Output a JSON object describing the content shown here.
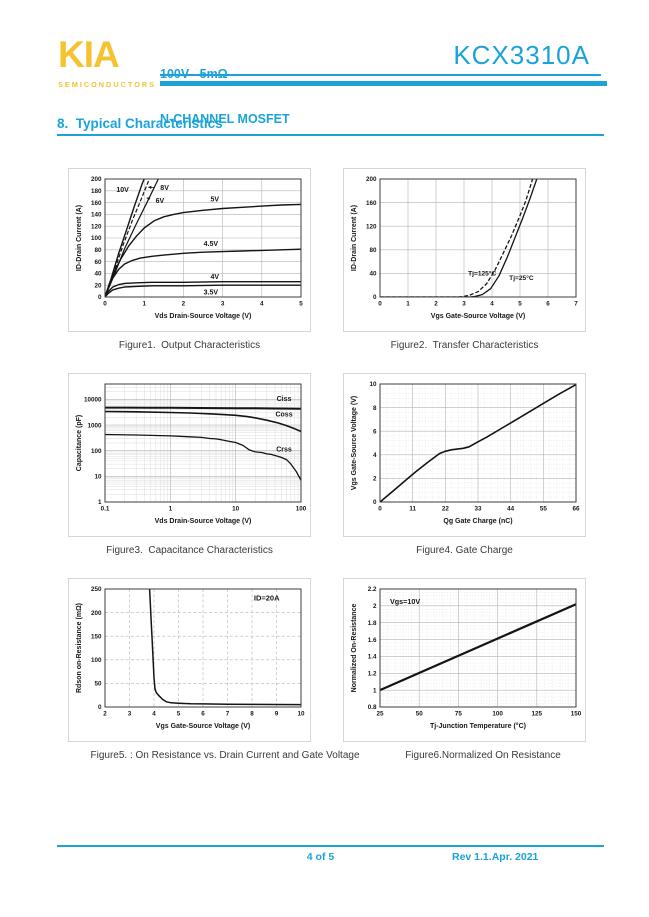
{
  "page": {
    "header": {
      "logo_text": "KIA",
      "logo_sub": "SEMICONDUCTORS",
      "subtitle_line1": "100V   5mΩ",
      "subtitle_line2": "N-CHANNEL MOSFET",
      "part_number": "KCX3310A"
    },
    "section_title": "8.  Typical Characteristics",
    "footer": {
      "page_info": "4 of 5",
      "revision": "Rev 1.1.Apr. 2021"
    },
    "colors": {
      "accent_cyan": "#1ba3d8",
      "logo_yellow": "#f5c230",
      "chart_line": "#141414",
      "grid_gray": "#b5b5b5"
    }
  },
  "chart_data": [
    {
      "type": "line",
      "title": "Figure1.  Output Characteristics",
      "xlabel": "Vds Drain-Source Voltage (V)",
      "ylabel": "ID-Drain Current (A)",
      "xscale": "linear",
      "yscale": "linear",
      "xlim": [
        0,
        5
      ],
      "ylim": [
        0,
        200
      ],
      "xticks": [
        0,
        1,
        2,
        3,
        4,
        5
      ],
      "yticks": [
        0,
        20,
        40,
        60,
        80,
        100,
        120,
        140,
        160,
        180,
        200
      ],
      "grid": "solid",
      "series": [
        {
          "name": "Vgs=10V",
          "width": 1.4,
          "points": [
            [
              0,
              0
            ],
            [
              0.15,
              30
            ],
            [
              0.35,
              74
            ],
            [
              0.55,
              114
            ],
            [
              0.75,
              154
            ],
            [
              0.95,
              192
            ],
            [
              1.0,
              200
            ]
          ]
        },
        {
          "name": "Vgs=8V",
          "dash": "4,2",
          "width": 1.2,
          "points": [
            [
              0,
              0
            ],
            [
              0.2,
              36
            ],
            [
              0.45,
              86
            ],
            [
              0.7,
              130
            ],
            [
              0.95,
              170
            ],
            [
              1.13,
              200
            ]
          ]
        },
        {
          "name": "Vgs=6V",
          "width": 1.2,
          "points": [
            [
              0,
              0
            ],
            [
              0.25,
              40
            ],
            [
              0.5,
              82
            ],
            [
              0.8,
              124
            ],
            [
              1.1,
              164
            ],
            [
              1.36,
              200
            ]
          ]
        },
        {
          "name": "Vgs=5V",
          "width": 1.4,
          "points": [
            [
              0,
              0
            ],
            [
              0.1,
              20
            ],
            [
              0.25,
              44
            ],
            [
              0.4,
              64
            ],
            [
              0.6,
              86
            ],
            [
              0.8,
              103
            ],
            [
              1.0,
              117
            ],
            [
              1.25,
              129
            ],
            [
              1.5,
              136
            ],
            [
              1.75,
              140
            ],
            [
              2.0,
              143
            ],
            [
              2.5,
              147
            ],
            [
              3.0,
              150
            ],
            [
              3.5,
              152
            ],
            [
              4.0,
              154
            ],
            [
              4.5,
              156
            ],
            [
              5.0,
              157
            ]
          ]
        },
        {
          "name": "Vgs=4.5V",
          "width": 1.4,
          "points": [
            [
              0,
              0
            ],
            [
              0.08,
              14
            ],
            [
              0.2,
              32
            ],
            [
              0.35,
              47
            ],
            [
              0.5,
              56
            ],
            [
              0.7,
              62
            ],
            [
              0.9,
              66
            ],
            [
              1.2,
              69
            ],
            [
              1.5,
              71
            ],
            [
              2.0,
              74
            ],
            [
              2.5,
              76
            ],
            [
              3.0,
              77
            ],
            [
              3.5,
              78
            ],
            [
              4.0,
              79
            ],
            [
              4.5,
              80
            ],
            [
              5.0,
              81
            ]
          ]
        },
        {
          "name": "Vgs=4V",
          "width": 1.4,
          "points": [
            [
              0,
              0
            ],
            [
              0.08,
              9
            ],
            [
              0.2,
              17
            ],
            [
              0.35,
              21
            ],
            [
              0.5,
              23
            ],
            [
              0.8,
              24
            ],
            [
              1.2,
              25
            ],
            [
              2.0,
              25
            ],
            [
              3.0,
              26
            ],
            [
              4.0,
              26
            ],
            [
              5.0,
              26
            ]
          ]
        },
        {
          "name": "Vgs=3.5V",
          "width": 1.4,
          "points": [
            [
              0,
              0
            ],
            [
              0.08,
              6
            ],
            [
              0.2,
              12
            ],
            [
              0.35,
              15
            ],
            [
              0.5,
              17
            ],
            [
              0.8,
              18
            ],
            [
              1.2,
              19
            ],
            [
              2.0,
              19
            ],
            [
              3.0,
              20
            ],
            [
              4.0,
              20
            ],
            [
              5.0,
              20
            ]
          ]
        }
      ],
      "annotations": [
        {
          "text": "10V",
          "x": 0.45,
          "y": 182
        },
        {
          "text": "8V",
          "x": 1.52,
          "y": 185,
          "arrow": [
            1.1,
            186
          ]
        },
        {
          "text": "6V",
          "x": 1.4,
          "y": 163,
          "arrow": [
            1.06,
            168
          ]
        },
        {
          "text": "5V",
          "x": 2.8,
          "y": 166
        },
        {
          "text": "4.5V",
          "x": 2.7,
          "y": 90
        },
        {
          "text": "4V",
          "x": 2.8,
          "y": 34
        },
        {
          "text": "3.5V",
          "x": 2.7,
          "y": 8
        }
      ]
    },
    {
      "type": "line",
      "title": "Figure2.  Transfer Characteristics",
      "xlabel": "Vgs Gate-Source Voltage (V)",
      "ylabel": "ID-Drain Current (A)",
      "xscale": "linear",
      "yscale": "linear",
      "xlim": [
        0,
        7
      ],
      "ylim": [
        0,
        200
      ],
      "xticks": [
        0,
        1,
        2,
        3,
        4,
        5,
        6,
        7
      ],
      "yticks": [
        0,
        40,
        80,
        120,
        160,
        200
      ],
      "grid": "solid",
      "series": [
        {
          "name": "Tj=125°C",
          "dash": "4,2",
          "width": 1.3,
          "points": [
            [
              0,
              0
            ],
            [
              2.8,
              0
            ],
            [
              3.0,
              1
            ],
            [
              3.2,
              3
            ],
            [
              3.5,
              9
            ],
            [
              3.8,
              22
            ],
            [
              4.1,
              45
            ],
            [
              4.4,
              74
            ],
            [
              4.7,
              104
            ],
            [
              5.0,
              138
            ],
            [
              5.2,
              162
            ],
            [
              5.45,
              200
            ]
          ]
        },
        {
          "name": "Tj=25°C",
          "width": 1.3,
          "points": [
            [
              0,
              0
            ],
            [
              3.2,
              0
            ],
            [
              3.4,
              1
            ],
            [
              3.65,
              4
            ],
            [
              3.95,
              14
            ],
            [
              4.25,
              36
            ],
            [
              4.55,
              68
            ],
            [
              4.85,
              104
            ],
            [
              5.1,
              134
            ],
            [
              5.35,
              166
            ],
            [
              5.6,
              200
            ]
          ]
        }
      ],
      "annotations": [
        {
          "text": "Tj=125°C",
          "x": 3.65,
          "y": 40,
          "size": 6.6
        },
        {
          "text": "Tj=25°C",
          "x": 5.05,
          "y": 33,
          "size": 6.6
        }
      ]
    },
    {
      "type": "line",
      "title": "Figure3.  Capacitance Characteristics",
      "xlabel": "Vds Drain-Source Voltage (V)",
      "ylabel": "Capacitance (pF)",
      "xscale": "log",
      "yscale": "log",
      "xlim": [
        0.1,
        100
      ],
      "ylim": [
        1,
        40000
      ],
      "xticks": [
        0.1,
        1,
        10,
        100
      ],
      "yticks": [
        1,
        10,
        100,
        1000,
        10000
      ],
      "grid": "solid",
      "minor": "log",
      "series": [
        {
          "name": "Ciss",
          "width": 2.0,
          "points": [
            [
              0.1,
              4800
            ],
            [
              0.5,
              4750
            ],
            [
              1,
              4700
            ],
            [
              3,
              4650
            ],
            [
              5,
              4600
            ],
            [
              10,
              4550
            ],
            [
              20,
              4500
            ],
            [
              40,
              4450
            ],
            [
              70,
              4380
            ],
            [
              100,
              4300
            ]
          ]
        },
        {
          "name": "Coss",
          "width": 1.6,
          "points": [
            [
              0.1,
              3400
            ],
            [
              0.3,
              3300
            ],
            [
              1,
              3100
            ],
            [
              2,
              2950
            ],
            [
              4,
              2750
            ],
            [
              7,
              2550
            ],
            [
              10,
              2400
            ],
            [
              15,
              2150
            ],
            [
              20,
              1900
            ],
            [
              30,
              1550
            ],
            [
              45,
              1200
            ],
            [
              60,
              950
            ],
            [
              80,
              720
            ],
            [
              100,
              560
            ]
          ]
        },
        {
          "name": "Crss",
          "width": 1.3,
          "points": [
            [
              0.1,
              430
            ],
            [
              0.3,
              410
            ],
            [
              1,
              380
            ],
            [
              2,
              350
            ],
            [
              3,
              330
            ],
            [
              4,
              300
            ],
            [
              5,
              290
            ],
            [
              6,
              270
            ],
            [
              8,
              230
            ],
            [
              10,
              210
            ],
            [
              13,
              160
            ],
            [
              16,
              110
            ],
            [
              20,
              90
            ],
            [
              25,
              85
            ],
            [
              30,
              75
            ],
            [
              35,
              72
            ],
            [
              40,
              65
            ],
            [
              50,
              55
            ],
            [
              60,
              45
            ],
            [
              70,
              30
            ],
            [
              85,
              15
            ],
            [
              100,
              7
            ]
          ]
        }
      ],
      "annotations": [
        {
          "text": "Ciss",
          "x": 55,
          "y": 10500
        },
        {
          "text": "Coss",
          "x": 55,
          "y": 2650
        },
        {
          "text": "Crss",
          "x": 55,
          "y": 115
        }
      ]
    },
    {
      "type": "line",
      "title": "Figure4. Gate Charge",
      "xlabel": "Qg Gate Charge (nC)",
      "ylabel": "Vgs Gate-Source Voltage (V)",
      "xscale": "linear",
      "yscale": "linear",
      "xlim": [
        0,
        66
      ],
      "ylim": [
        0,
        10
      ],
      "xticks": [
        0,
        11,
        22,
        33,
        44,
        55,
        66
      ],
      "yticks": [
        0,
        2,
        4,
        6,
        8,
        10
      ],
      "grid": "solid",
      "minor": {
        "x": 5,
        "y": 5
      },
      "series": [
        {
          "name": "Vgs",
          "width": 1.6,
          "points": [
            [
              0,
              0
            ],
            [
              4,
              0.85
            ],
            [
              8,
              1.7
            ],
            [
              12,
              2.55
            ],
            [
              16,
              3.35
            ],
            [
              20,
              4.1
            ],
            [
              22,
              4.3
            ],
            [
              24,
              4.42
            ],
            [
              26,
              4.48
            ],
            [
              28,
              4.55
            ],
            [
              30,
              4.68
            ],
            [
              33,
              5.1
            ],
            [
              36,
              5.5
            ],
            [
              42,
              6.4
            ],
            [
              48,
              7.3
            ],
            [
              54,
              8.2
            ],
            [
              60,
              9.1
            ],
            [
              66,
              9.95
            ]
          ]
        }
      ],
      "annotations": []
    },
    {
      "type": "line",
      "title": "Figure5. : On Resistance vs. Drain Current and Gate Voltage",
      "xlabel": "Vgs Gate-Source Voltage (V)",
      "ylabel": "Rdson on-Resistance (mΩ)",
      "xscale": "linear",
      "yscale": "linear",
      "xlim": [
        2,
        10
      ],
      "ylim": [
        0,
        250
      ],
      "xticks": [
        2,
        3,
        4,
        5,
        6,
        7,
        8,
        9,
        10
      ],
      "yticks": [
        0,
        50,
        100,
        150,
        200,
        250
      ],
      "grid": "dashed",
      "series": [
        {
          "name": "Rdson",
          "width": 1.5,
          "points": [
            [
              3.82,
              250
            ],
            [
              3.85,
              220
            ],
            [
              3.88,
              185
            ],
            [
              3.92,
              148
            ],
            [
              3.96,
              105
            ],
            [
              4.0,
              62
            ],
            [
              4.04,
              38
            ],
            [
              4.1,
              30
            ],
            [
              4.2,
              24
            ],
            [
              4.35,
              16
            ],
            [
              4.5,
              11
            ],
            [
              4.7,
              9
            ],
            [
              5.0,
              8
            ],
            [
              5.5,
              7
            ],
            [
              6.0,
              6.5
            ],
            [
              7.0,
              6
            ],
            [
              8.0,
              5.5
            ],
            [
              9.0,
              5.2
            ],
            [
              10.0,
              5
            ]
          ]
        }
      ],
      "annotations": [
        {
          "text": "ID=20A",
          "x": 8.6,
          "y": 230,
          "size": 7.5
        }
      ]
    },
    {
      "type": "line",
      "title": "Figure6.Normalized On Resistance",
      "xlabel": "Tj-Junction Temperature (°C)",
      "ylabel": "Normalized On-Resistance",
      "xscale": "linear",
      "yscale": "linear",
      "xlim": [
        25,
        150
      ],
      "ylim": [
        0.8,
        2.2
      ],
      "xticks": [
        25,
        50,
        75,
        100,
        125,
        150
      ],
      "yticks": [
        0.8,
        1,
        1.2,
        1.4,
        1.6,
        1.8,
        2,
        2.2
      ],
      "grid": "solid",
      "minor": {
        "x": 5,
        "y": 5
      },
      "series": [
        {
          "name": "Normalized Rdson",
          "width": 2.2,
          "points": [
            [
              25,
              1.0
            ],
            [
              150,
              2.02
            ]
          ]
        }
      ],
      "annotations": [
        {
          "text": "Vgs=10V",
          "x": 41,
          "y": 2.05,
          "size": 7.2
        }
      ]
    }
  ]
}
